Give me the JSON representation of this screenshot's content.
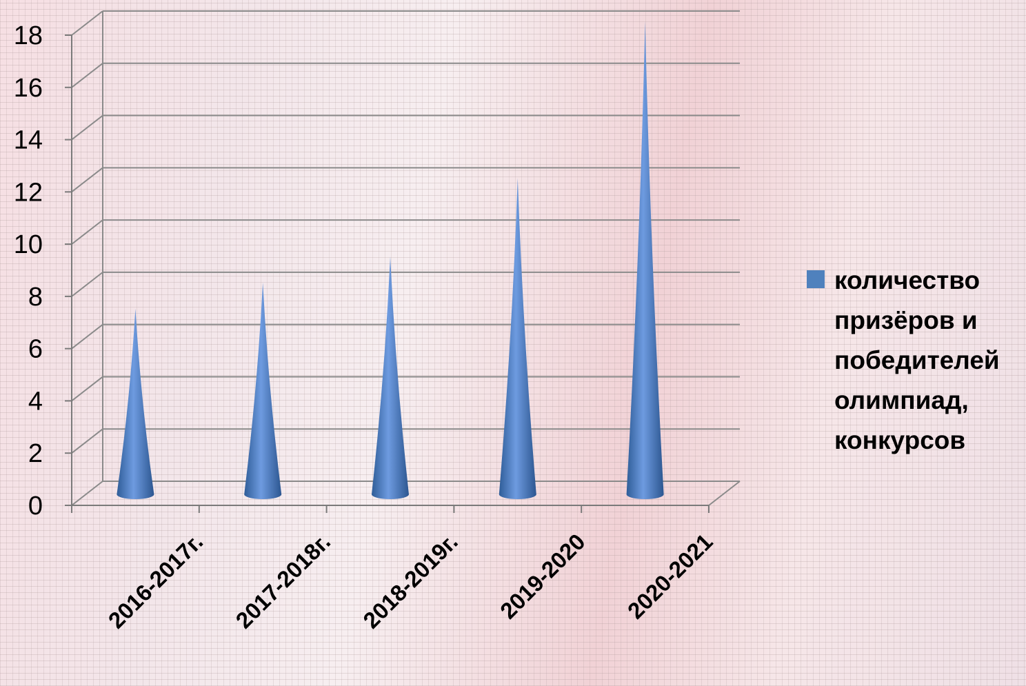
{
  "chart_data": {
    "type": "bar",
    "style": "3d-cone",
    "categories": [
      "2016-2017г.",
      "2017-2018г.",
      "2018-2019г.",
      "2019-2020",
      "2020-2021"
    ],
    "series": [
      {
        "name": "количество\nпризёров и\nпобедителей\nолимпиад,\nконкурсов",
        "values": [
          7,
          8,
          9,
          12,
          18
        ],
        "color": "#4f81bd"
      }
    ],
    "ylim": [
      0,
      18
    ],
    "yticks": [
      "0",
      "2",
      "4",
      "6",
      "8",
      "10",
      "12",
      "14",
      "16",
      "18"
    ],
    "grid": true,
    "legend_position": "right"
  }
}
